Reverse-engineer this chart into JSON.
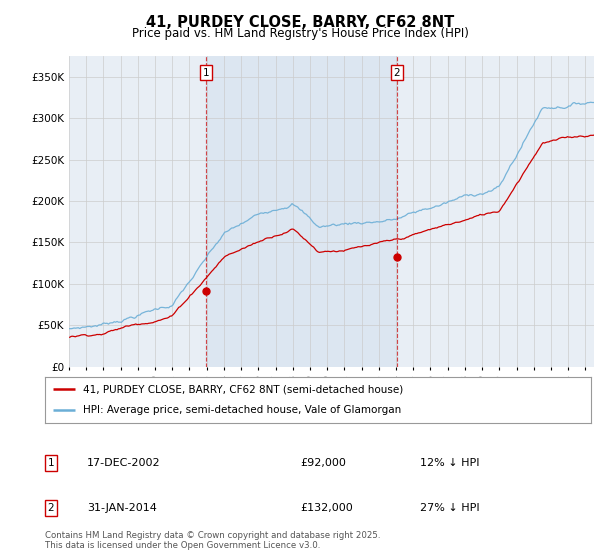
{
  "title": "41, PURDEY CLOSE, BARRY, CF62 8NT",
  "subtitle": "Price paid vs. HM Land Registry's House Price Index (HPI)",
  "ylabel_values": [
    "£0",
    "£50K",
    "£100K",
    "£150K",
    "£200K",
    "£250K",
    "£300K",
    "£350K"
  ],
  "ylim": [
    0,
    375000
  ],
  "yticks": [
    0,
    50000,
    100000,
    150000,
    200000,
    250000,
    300000,
    350000
  ],
  "xlim_start": 1995.0,
  "xlim_end": 2025.5,
  "sale1_year": 2002,
  "sale1_month": 12,
  "sale1_price": 92000,
  "sale2_year": 2014,
  "sale2_month": 1,
  "sale2_price": 132000,
  "legend_property": "41, PURDEY CLOSE, BARRY, CF62 8NT (semi-detached house)",
  "legend_hpi": "HPI: Average price, semi-detached house, Vale of Glamorgan",
  "footer": "Contains HM Land Registry data © Crown copyright and database right 2025.\nThis data is licensed under the Open Government Licence v3.0.",
  "property_color": "#cc0000",
  "hpi_color": "#6baed6",
  "shade_color": "#dce6f1",
  "background_color": "#dce6f1",
  "plot_bg_color": "#ffffff",
  "vline_color": "#cc0000"
}
